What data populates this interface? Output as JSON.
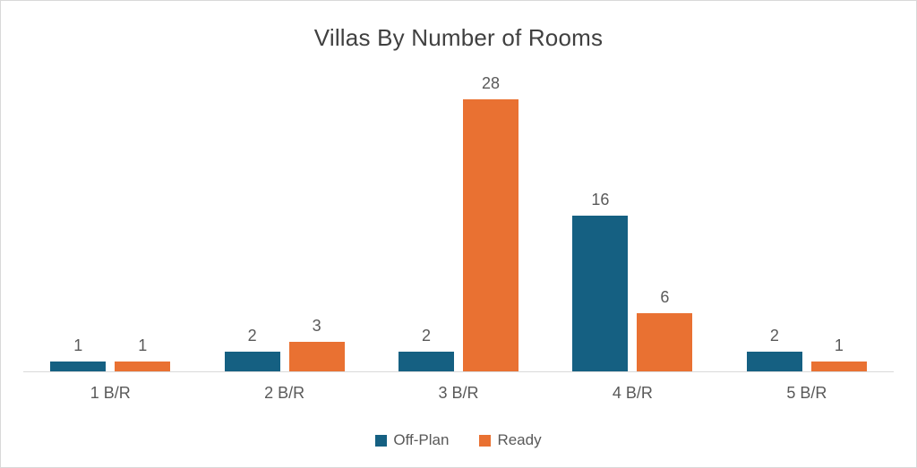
{
  "chart_data": {
    "type": "bar",
    "title": "Villas By Number of Rooms",
    "categories": [
      "1 B/R",
      "2 B/R",
      "3 B/R",
      "4 B/R",
      "5 B/R"
    ],
    "series": [
      {
        "name": "Off-Plan",
        "color": "#156082",
        "values": [
          1,
          2,
          2,
          16,
          2
        ]
      },
      {
        "name": "Ready",
        "color": "#E97132",
        "values": [
          1,
          3,
          28,
          6,
          1
        ]
      }
    ],
    "ylim": [
      0,
      28
    ],
    "xlabel": "",
    "ylabel": "",
    "grid": false,
    "data_labels": true,
    "legend_position": "bottom"
  },
  "colors": {
    "title_text": "#404040",
    "label_text": "#595959",
    "axis_line": "#d9d9d9",
    "frame_border": "#d9d9d9",
    "background": "#ffffff"
  }
}
